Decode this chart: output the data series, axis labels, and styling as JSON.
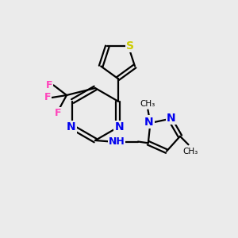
{
  "bg_color": "#ebebeb",
  "bond_color": "#000000",
  "N_color": "#0000ee",
  "S_color": "#cccc00",
  "F_color": "#ff44bb",
  "bond_width": 1.6,
  "figsize": [
    3.0,
    3.0
  ],
  "dpi": 100,
  "xlim": [
    0,
    10
  ],
  "ylim": [
    0,
    10
  ]
}
